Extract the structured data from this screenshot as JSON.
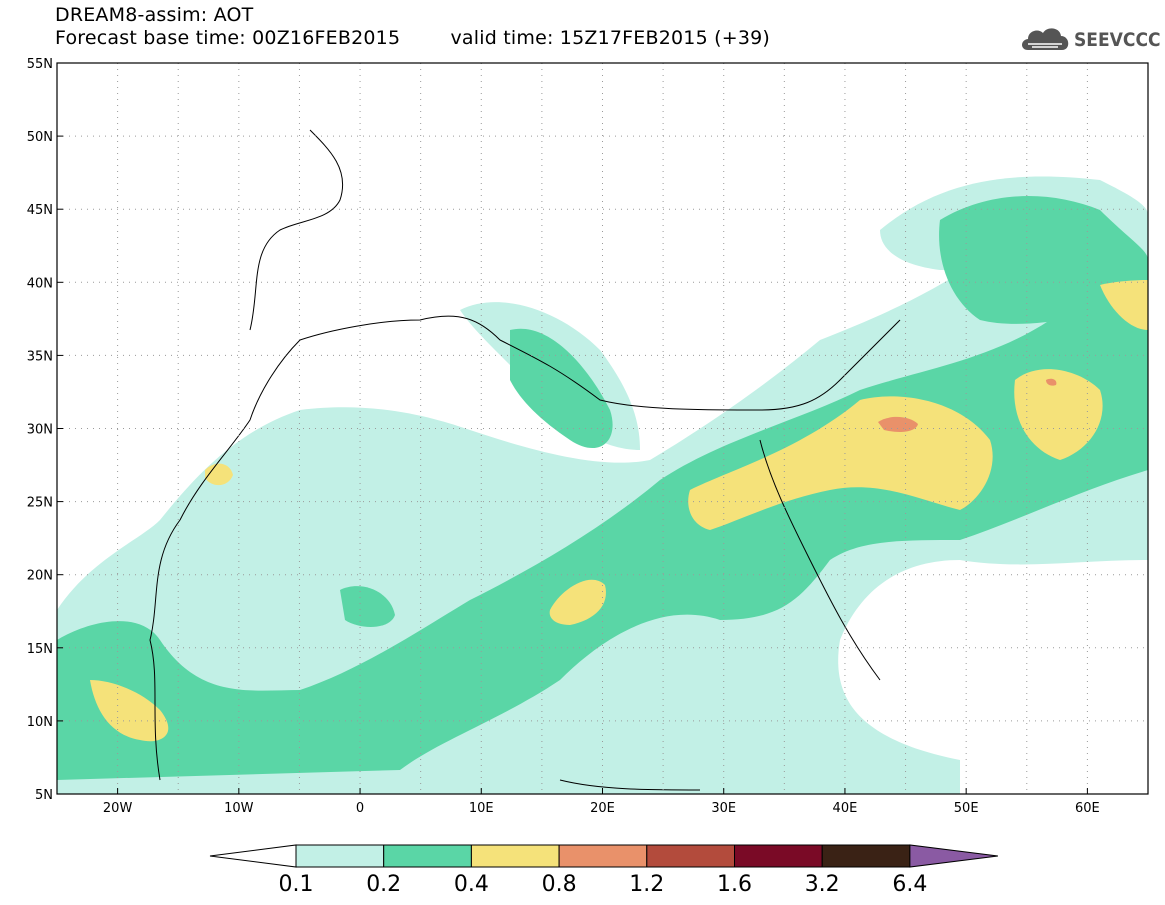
{
  "header": {
    "line1": "DREAM8-assim: AOT",
    "base_time": "Forecast base time: 00Z16FEB2015",
    "valid_time": "valid time: 15Z17FEB2015 (+39)"
  },
  "logo": {
    "text": "SEEVCCC",
    "icon": "cloud-icon",
    "color": "#555555"
  },
  "map": {
    "lon_range": [
      -25,
      65
    ],
    "lat_range": [
      5,
      55
    ],
    "lon_ticks": [
      "20W",
      "10W",
      "0",
      "10E",
      "20E",
      "30E",
      "40E",
      "50E",
      "60E"
    ],
    "lat_ticks": [
      "55N",
      "50N",
      "45N",
      "40N",
      "35N",
      "30N",
      "25N",
      "20N",
      "15N",
      "10N",
      "5N"
    ],
    "grid": "dotted"
  },
  "colorbar": {
    "labels": [
      "0.1",
      "0.2",
      "0.4",
      "0.8",
      "1.2",
      "1.6",
      "3.2",
      "6.4"
    ],
    "colors": [
      "#ffffff",
      "#c2f0e6",
      "#5ad6a6",
      "#f5e27a",
      "#e9916a",
      "#b34b3c",
      "#7a0a26",
      "#3a2215",
      "#8a5aa3"
    ]
  }
}
